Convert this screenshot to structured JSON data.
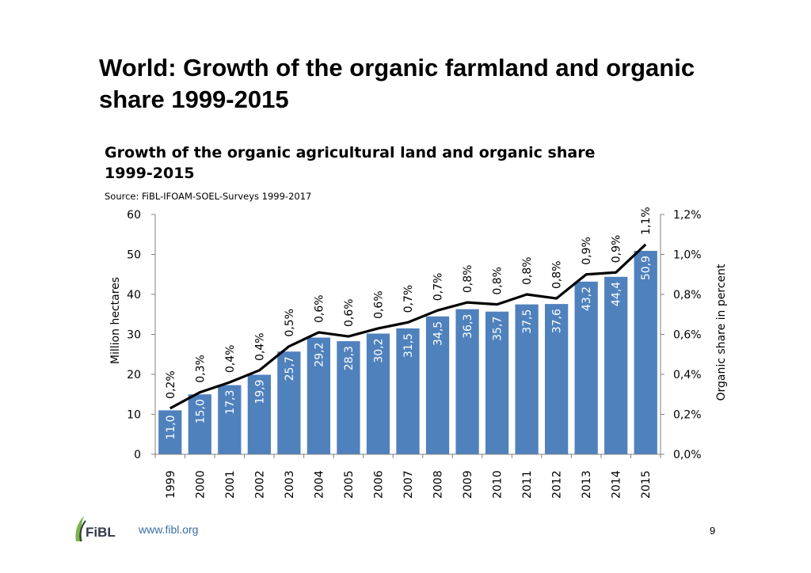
{
  "slide": {
    "title": "World: Growth of the organic farmland and organic share 1999-2015",
    "footer_url": "www.fibl.org",
    "page_number": "9",
    "logo_text": "FiBL",
    "logo_color": "#2f3a4a",
    "logo_accent": "#7ab648"
  },
  "chart_data": {
    "type": "bar",
    "title": "Growth of the organic agricultural land and organic share 1999-2015",
    "subtitle": "Source: FiBL-IFOAM-SOEL-Surveys 1999-2017",
    "ylabel": "Million hectares",
    "y2label": "Organic share in percent",
    "ylim": [
      0,
      60
    ],
    "y2lim": [
      0,
      1.2
    ],
    "yticks": [
      "0",
      "10",
      "20",
      "30",
      "40",
      "50",
      "60"
    ],
    "y2ticks": [
      "0,0%",
      "0,2%",
      "0,4%",
      "0,6%",
      "0,8%",
      "1,0%",
      "1,2%"
    ],
    "grid": false,
    "bar_color": "#4f81bd",
    "line_color": "#000000",
    "categories": [
      "1999",
      "2000",
      "2001",
      "2002",
      "2003",
      "2004",
      "2005",
      "2006",
      "2007",
      "2008",
      "2009",
      "2010",
      "2011",
      "2012",
      "2013",
      "2014",
      "2015"
    ],
    "series": [
      {
        "type": "bar",
        "values": [
          11.0,
          15.0,
          17.3,
          19.9,
          25.7,
          29.2,
          28.3,
          30.2,
          31.5,
          34.5,
          36.3,
          35.7,
          37.5,
          37.6,
          43.2,
          44.4,
          50.9
        ],
        "labels": [
          "11,0",
          "15,0",
          "17,3",
          "19,9",
          "25,7",
          "29,2",
          "28,3",
          "30,2",
          "31,5",
          "34,5",
          "36,3",
          "35,7",
          "37,5",
          "37,6",
          "43,2",
          "44,4",
          "50,9"
        ]
      },
      {
        "type": "line",
        "axis": "secondary",
        "values": [
          0.23,
          0.31,
          0.36,
          0.42,
          0.54,
          0.61,
          0.59,
          0.63,
          0.66,
          0.72,
          0.76,
          0.75,
          0.8,
          0.78,
          0.9,
          0.91,
          1.05
        ],
        "labels": [
          "0,2%",
          "0,3%",
          "0,4%",
          "0,4%",
          "0,5%",
          "0,6%",
          "0,6%",
          "0,6%",
          "0,7%",
          "0,7%",
          "0,8%",
          "0,8%",
          "0,8%",
          "0,8%",
          "0,9%",
          "0,9%",
          "1,1%"
        ]
      }
    ]
  }
}
